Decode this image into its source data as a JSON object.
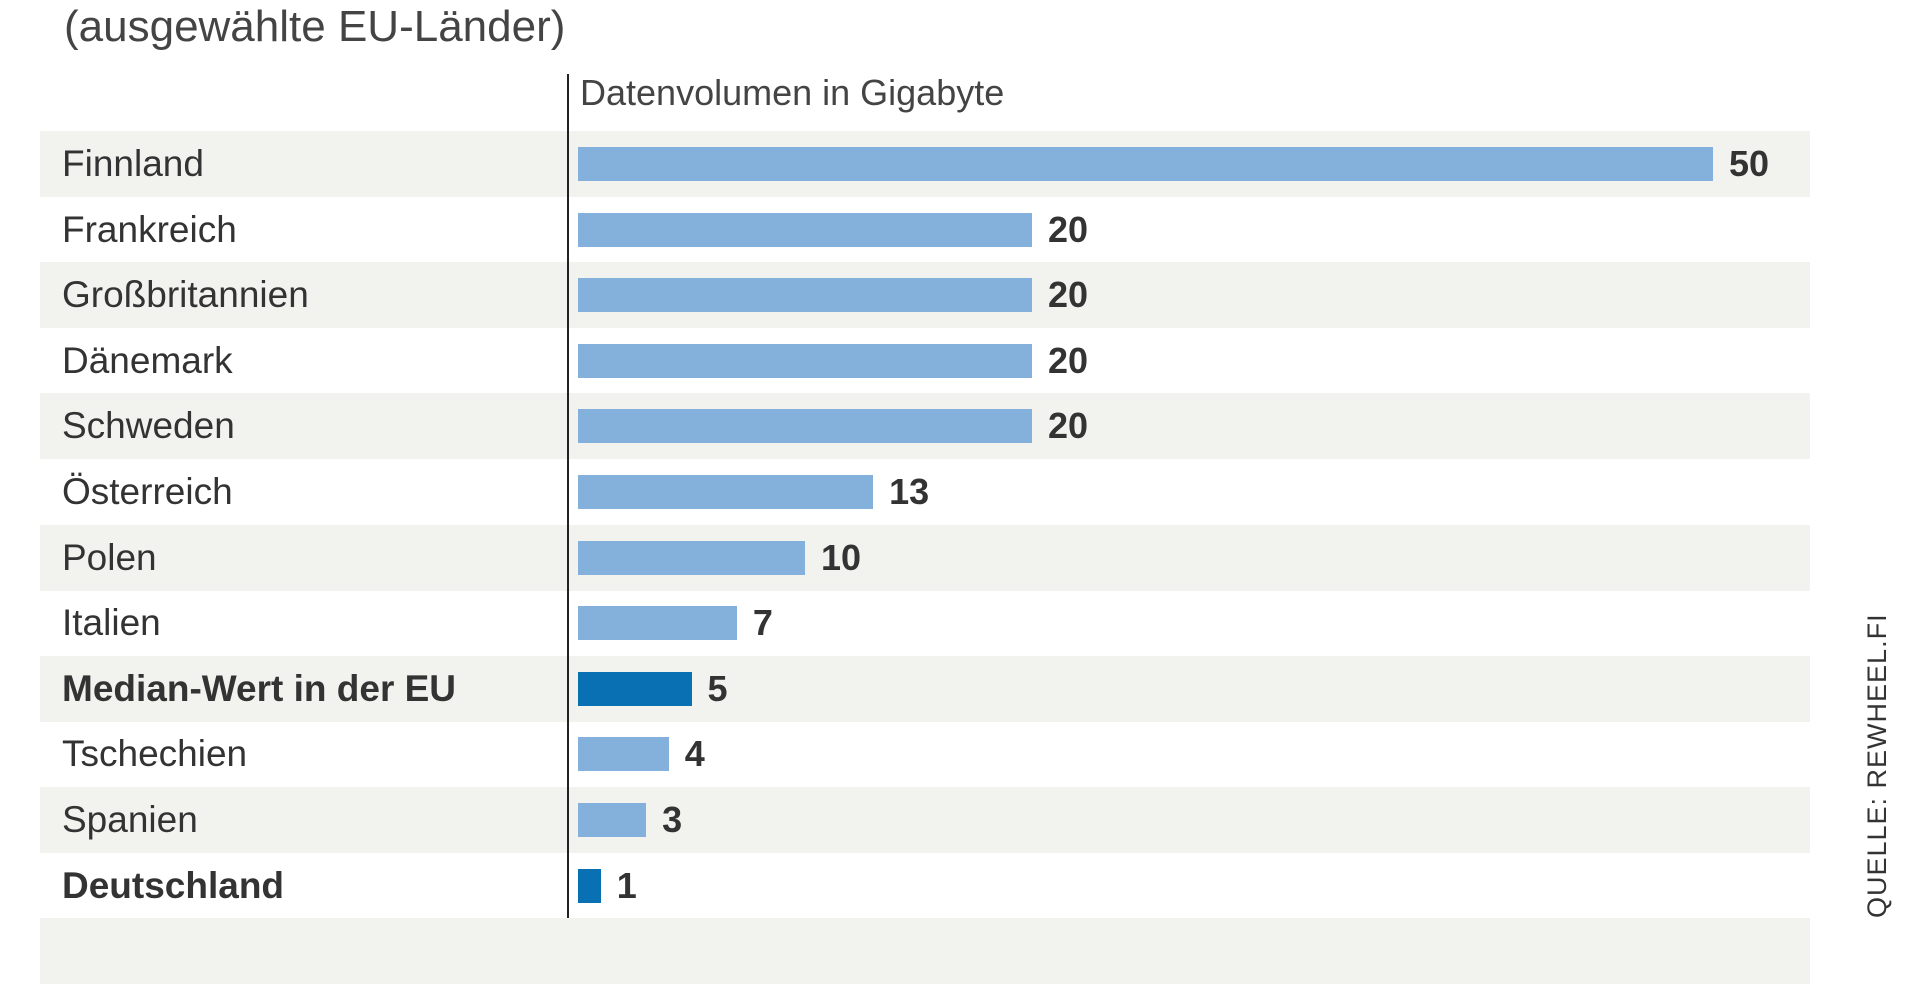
{
  "chart_data": {
    "type": "bar",
    "orientation": "horizontal",
    "subtitle": "(ausgewählte EU-Länder)",
    "xlabel": "Datenvolumen in Gigabyte",
    "categories": [
      "Finnland",
      "Frankreich",
      "Großbritannien",
      "Dänemark",
      "Schweden",
      "Österreich",
      "Polen",
      "Italien",
      "Median-Wert in der EU",
      "Tschechien",
      "Spanien",
      "Deutschland"
    ],
    "values": [
      50,
      20,
      20,
      20,
      20,
      13,
      10,
      7,
      5,
      4,
      3,
      1
    ],
    "highlighted": [
      "Median-Wert in der EU",
      "Deutschland"
    ],
    "xlim": [
      0,
      50
    ],
    "grid": false,
    "colors": {
      "bar": "#84b0dc",
      "highlight": "#0a70b4",
      "band": "#f2f2ee"
    },
    "source": "QUELLE: REWHEEL.FI"
  }
}
